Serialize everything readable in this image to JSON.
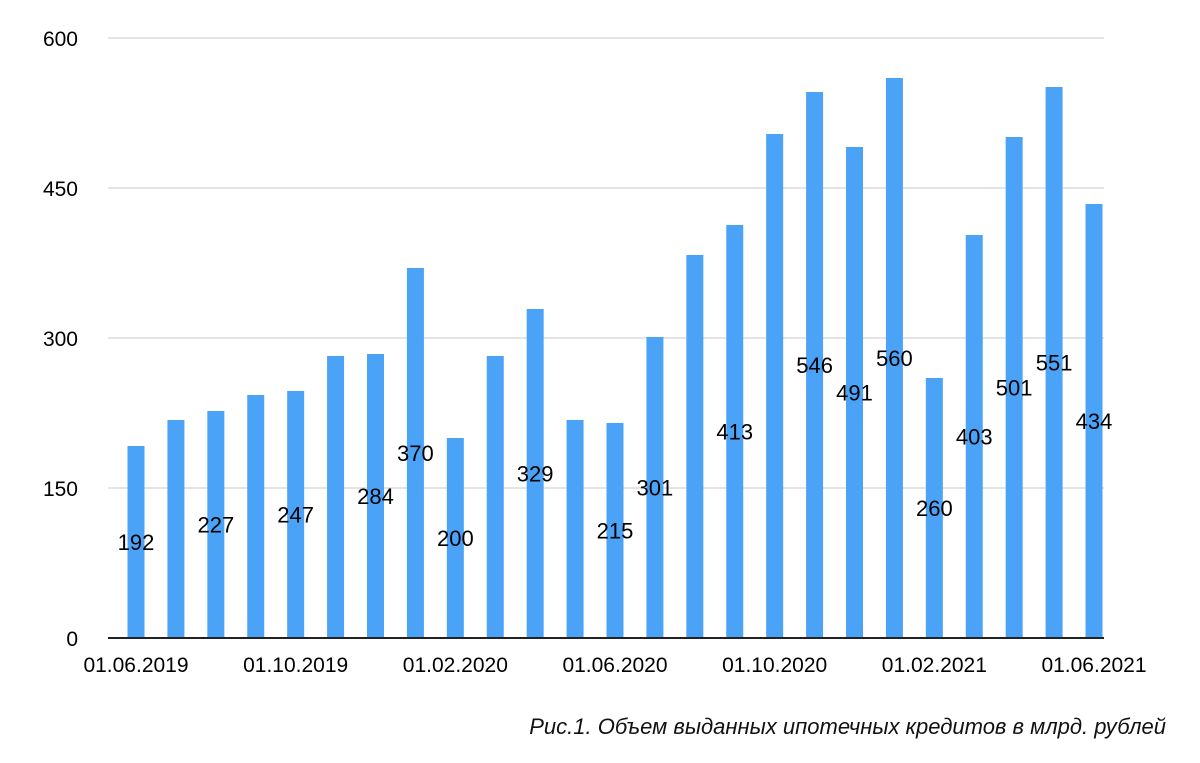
{
  "chart_data": {
    "type": "bar",
    "categories": [
      "01.06.2019",
      "01.07.2019",
      "01.08.2019",
      "01.09.2019",
      "01.10.2019",
      "01.11.2019",
      "01.12.2019",
      "01.01.2020",
      "01.02.2020",
      "01.03.2020",
      "01.04.2020",
      "01.05.2020",
      "01.06.2020",
      "01.07.2020",
      "01.08.2020",
      "01.09.2020",
      "01.10.2020",
      "01.11.2020",
      "01.12.2020",
      "01.01.2021",
      "01.02.2021",
      "01.03.2021",
      "01.04.2021",
      "01.05.2021",
      "01.06.2021"
    ],
    "values": [
      192,
      218,
      227,
      243,
      247,
      282,
      284,
      370,
      200,
      282,
      329,
      218,
      215,
      301,
      383,
      413,
      504,
      546,
      491,
      560,
      260,
      403,
      501,
      551,
      434
    ],
    "data_labels": [
      "192",
      "",
      "227",
      "",
      "247",
      "",
      "284",
      "370",
      "200",
      "",
      "329",
      "",
      "215",
      "301",
      "",
      "413",
      "",
      "546",
      "491",
      "560",
      "260",
      "403",
      "501",
      "551",
      "434"
    ],
    "x_tick_labels": [
      "01.06.2019",
      "",
      "",
      "",
      "01.10.2019",
      "",
      "",
      "",
      "01.02.2020",
      "",
      "",
      "",
      "01.06.2020",
      "",
      "",
      "",
      "01.10.2020",
      "",
      "",
      "",
      "01.02.2021",
      "",
      "",
      "",
      "01.06.2021"
    ],
    "y_ticks": [
      0,
      150,
      300,
      450,
      600
    ],
    "ylim": [
      0,
      600
    ],
    "title": "",
    "xlabel": "",
    "ylabel": "",
    "grid": true,
    "bar_color": "#4ba3f7",
    "grid_color": "#c8c8c8",
    "axis_color": "#222222",
    "text_color": "#000000"
  },
  "caption": "Рис.1. Объем выданных ипотечных кредитов в млрд. рублей"
}
